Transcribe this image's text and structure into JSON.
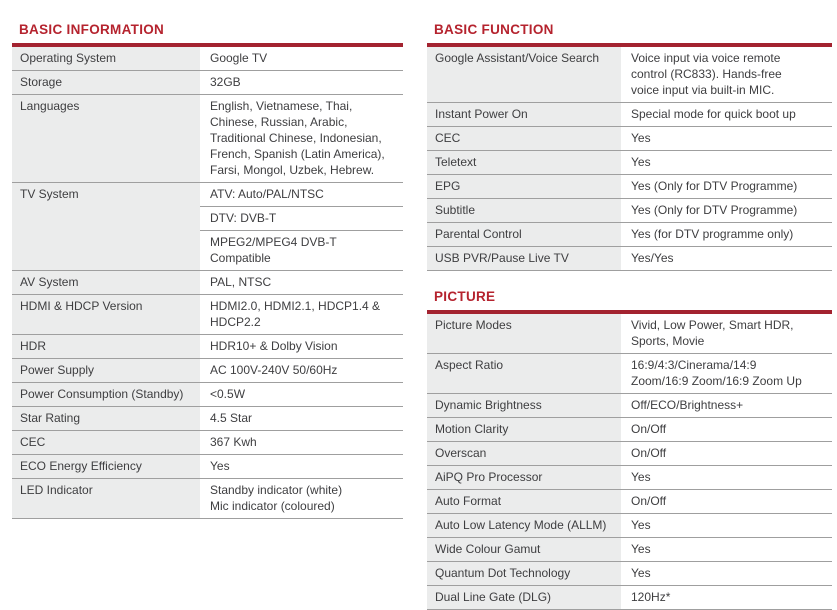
{
  "colors": {
    "accent_red": "#b5232e",
    "rule_red": "#a32330",
    "label_bg": "#ebecec",
    "divider": "#9f9f9f",
    "text": "#3e3e40",
    "background": "#ffffff"
  },
  "tables": [
    {
      "id": "basic-information",
      "title": "BASIC INFORMATION",
      "rows": [
        {
          "label": "Operating System",
          "values": [
            "Google TV"
          ]
        },
        {
          "label": "Storage",
          "values": [
            "32GB"
          ]
        },
        {
          "label": "Languages",
          "values": [
            "English, Vietnamese, Thai,\nChinese, Russian, Arabic,\nTraditional Chinese, Indonesian,\nFrench, Spanish (Latin America),\nFarsi, Mongol, Uzbek, Hebrew."
          ]
        },
        {
          "label": "TV System",
          "values": [
            "ATV: Auto/PAL/NTSC",
            "DTV: DVB-T",
            "MPEG2/MPEG4 DVB-T\nCompatible"
          ]
        },
        {
          "label": "AV System",
          "values": [
            "PAL, NTSC"
          ]
        },
        {
          "label": "HDMI & HDCP Version",
          "values": [
            "HDMI2.0, HDMI2.1, HDCP1.4 &\nHDCP2.2"
          ]
        },
        {
          "label": "HDR",
          "values": [
            "HDR10+ & Dolby Vision"
          ]
        },
        {
          "label": "Power Supply",
          "values": [
            "AC 100V-240V 50/60Hz"
          ]
        },
        {
          "label": "Power Consumption (Standby)",
          "values": [
            "<0.5W"
          ]
        },
        {
          "label": "Star Rating",
          "values": [
            "4.5 Star"
          ]
        },
        {
          "label": "CEC",
          "values": [
            "367 Kwh"
          ]
        },
        {
          "label": "ECO Energy Efficiency",
          "values": [
            "Yes"
          ]
        },
        {
          "label": "LED Indicator",
          "values": [
            "Standby indicator (white)\nMic indicator (coloured)"
          ]
        }
      ]
    },
    {
      "id": "basic-function",
      "title": "BASIC FUNCTION",
      "rows": [
        {
          "label": "Google Assistant/Voice Search",
          "values": [
            "Voice input via voice remote\ncontrol (RC833). Hands-free\nvoice input via built-in MIC."
          ]
        },
        {
          "label": "Instant Power On",
          "values": [
            "Special mode for quick boot up"
          ]
        },
        {
          "label": "CEC",
          "values": [
            "Yes"
          ]
        },
        {
          "label": "Teletext",
          "values": [
            "Yes"
          ]
        },
        {
          "label": "EPG",
          "values": [
            "Yes (Only for DTV Programme)"
          ]
        },
        {
          "label": "Subtitle",
          "values": [
            "Yes (Only for DTV Programme)"
          ]
        },
        {
          "label": "Parental Control",
          "values": [
            "Yes (for DTV programme only)"
          ]
        },
        {
          "label": "USB PVR/Pause Live TV",
          "values": [
            "Yes/Yes"
          ]
        }
      ]
    },
    {
      "id": "picture",
      "title": "PICTURE",
      "rows": [
        {
          "label": "Picture Modes",
          "values": [
            "Vivid, Low Power, Smart HDR,\nSports, Movie"
          ]
        },
        {
          "label": "Aspect Ratio",
          "values": [
            "16:9/4:3/Cinerama/14:9\nZoom/16:9 Zoom/16:9 Zoom Up"
          ]
        },
        {
          "label": "Dynamic Brightness",
          "values": [
            "Off/ECO/Brightness+"
          ]
        },
        {
          "label": "Motion Clarity",
          "values": [
            "On/Off"
          ]
        },
        {
          "label": "Overscan",
          "values": [
            "On/Off"
          ]
        },
        {
          "label": "AiPQ Pro Processor",
          "values": [
            "Yes"
          ]
        },
        {
          "label": "Auto Format",
          "values": [
            "On/Off"
          ]
        },
        {
          "label": "Auto Low Latency Mode (ALLM)",
          "values": [
            "Yes"
          ]
        },
        {
          "label": "Wide Colour Gamut",
          "values": [
            "Yes"
          ]
        },
        {
          "label": "Quantum Dot Technology",
          "values": [
            "Yes"
          ]
        },
        {
          "label": "Dual Line Gate (DLG)",
          "values": [
            "120Hz*"
          ]
        }
      ]
    }
  ]
}
